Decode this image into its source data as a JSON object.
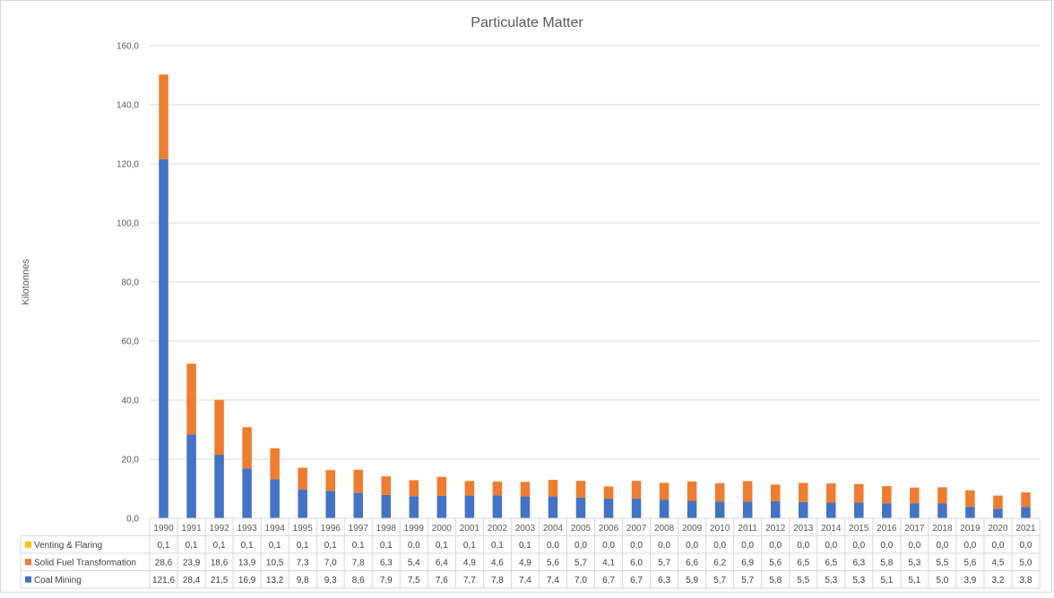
{
  "chart_data": {
    "type": "bar",
    "stacked": true,
    "title": "Particulate Matter",
    "ylabel": "Kilotonnes",
    "xlabel": "",
    "ylim": [
      0,
      160
    ],
    "yticks": [
      "0,0",
      "20,0",
      "40,0",
      "60,0",
      "80,0",
      "100,0",
      "120,0",
      "140,0",
      "160,0"
    ],
    "grid": true,
    "legend": "data-table-left",
    "categories": [
      "1990",
      "1991",
      "1992",
      "1993",
      "1994",
      "1995",
      "1996",
      "1997",
      "1998",
      "1999",
      "2000",
      "2001",
      "2002",
      "2003",
      "2004",
      "2005",
      "2006",
      "2007",
      "2008",
      "2009",
      "2010",
      "2011",
      "2012",
      "2013",
      "2014",
      "2015",
      "2016",
      "2017",
      "2018",
      "2019",
      "2020",
      "2021"
    ],
    "series": [
      {
        "name": "Venting & Flaring",
        "color": "#ffc000",
        "values": [
          0.1,
          0.1,
          0.1,
          0.1,
          0.1,
          0.1,
          0.1,
          0.1,
          0.1,
          0.0,
          0.1,
          0.1,
          0.1,
          0.1,
          0.0,
          0.0,
          0.0,
          0.0,
          0.0,
          0.0,
          0.0,
          0.0,
          0.0,
          0.0,
          0.0,
          0.0,
          0.0,
          0.0,
          0.0,
          0.0,
          0.0,
          0.0
        ],
        "labels": [
          "0,1",
          "0,1",
          "0,1",
          "0,1",
          "0,1",
          "0,1",
          "0,1",
          "0,1",
          "0,1",
          "0,0",
          "0,1",
          "0,1",
          "0,1",
          "0,1",
          "0,0",
          "0,0",
          "0,0",
          "0,0",
          "0,0",
          "0,0",
          "0,0",
          "0,0",
          "0,0",
          "0,0",
          "0,0",
          "0,0",
          "0,0",
          "0,0",
          "0,0",
          "0,0",
          "0,0",
          "0,0"
        ]
      },
      {
        "name": "Solid Fuel Transformation",
        "color": "#ed7d31",
        "values": [
          28.6,
          23.9,
          18.6,
          13.9,
          10.5,
          7.3,
          7.0,
          7.8,
          6.3,
          5.4,
          6.4,
          4.9,
          4.6,
          4.9,
          5.6,
          5.7,
          4.1,
          6.0,
          5.7,
          6.6,
          6.2,
          6.9,
          5.6,
          6.5,
          6.5,
          6.3,
          5.8,
          5.3,
          5.5,
          5.6,
          4.5,
          5.0
        ],
        "labels": [
          "28,6",
          "23,9",
          "18,6",
          "13,9",
          "10,5",
          "7,3",
          "7,0",
          "7,8",
          "6,3",
          "5,4",
          "6,4",
          "4,9",
          "4,6",
          "4,9",
          "5,6",
          "5,7",
          "4,1",
          "6,0",
          "5,7",
          "6,6",
          "6,2",
          "6,9",
          "5,6",
          "6,5",
          "6,5",
          "6,3",
          "5,8",
          "5,3",
          "5,5",
          "5,6",
          "4,5",
          "5,0"
        ]
      },
      {
        "name": "Coal Mining",
        "color": "#4472c4",
        "values": [
          121.6,
          28.4,
          21.5,
          16.9,
          13.2,
          9.8,
          9.3,
          8.6,
          7.9,
          7.5,
          7.6,
          7.7,
          7.8,
          7.4,
          7.4,
          7.0,
          6.7,
          6.7,
          6.3,
          5.9,
          5.7,
          5.7,
          5.8,
          5.5,
          5.3,
          5.3,
          5.1,
          5.1,
          5.0,
          3.9,
          3.2,
          3.8
        ],
        "labels": [
          "121,6",
          "28,4",
          "21,5",
          "16,9",
          "13,2",
          "9,8",
          "9,3",
          "8,6",
          "7,9",
          "7,5",
          "7,6",
          "7,7",
          "7,8",
          "7,4",
          "7,4",
          "7,0",
          "6,7",
          "6,7",
          "6,3",
          "5,9",
          "5,7",
          "5,7",
          "5,8",
          "5,5",
          "5,3",
          "5,3",
          "5,1",
          "5,1",
          "5,0",
          "3,9",
          "3,2",
          "3,8"
        ]
      }
    ],
    "stack_order": [
      "Coal Mining",
      "Solid Fuel Transformation",
      "Venting & Flaring"
    ]
  }
}
